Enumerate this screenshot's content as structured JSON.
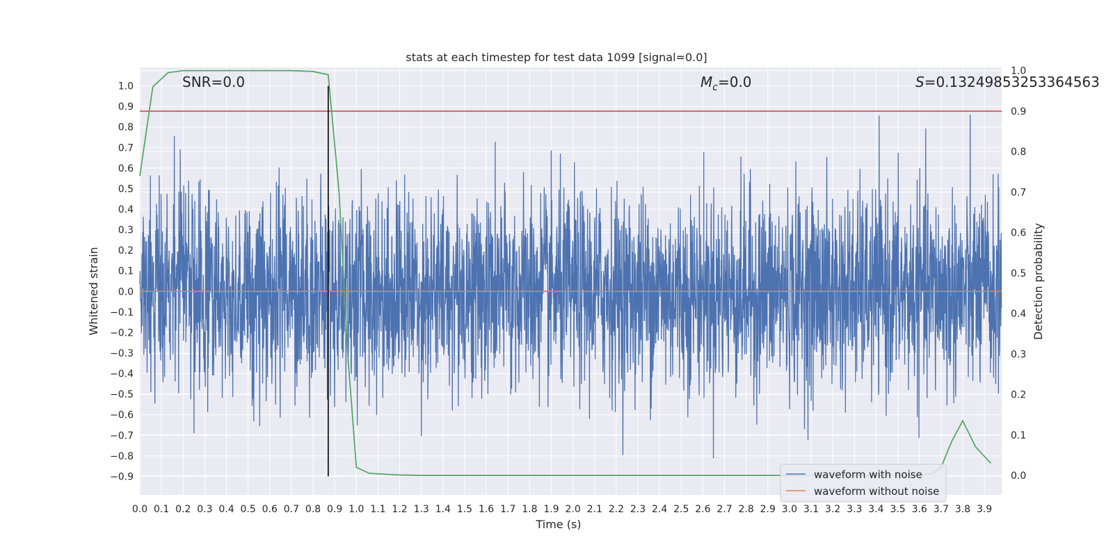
{
  "chart_data": {
    "type": "line",
    "title": "stats at each timestep for test data 1099 [signal=0.0]",
    "xlabel": "Time (s)",
    "ylabel": "Whitened strain",
    "y2label": "Detection probability",
    "xlim": [
      0.0,
      3.98
    ],
    "ylim": [
      -0.99,
      1.09
    ],
    "y2lim": [
      -0.048,
      1.008
    ],
    "xticks": [
      0.0,
      0.1,
      0.2,
      0.3,
      0.4,
      0.5,
      0.6,
      0.7,
      0.8,
      0.9,
      1.0,
      1.1,
      1.2,
      1.3,
      1.4,
      1.5,
      1.6,
      1.7,
      1.8,
      1.9,
      2.0,
      2.1,
      2.2,
      2.3,
      2.4,
      2.5,
      2.6,
      2.7,
      2.8,
      2.9,
      3.0,
      3.1,
      3.2,
      3.3,
      3.4,
      3.5,
      3.6,
      3.7,
      3.8,
      3.9
    ],
    "xtick_labels": [
      "0.0",
      "0.1",
      "0.2",
      "0.3",
      "0.4",
      "0.5",
      "0.6",
      "0.7",
      "0.8",
      "0.9",
      "1.0",
      "1.1",
      "1.2",
      "1.3",
      "1.4",
      "1.5",
      "1.6",
      "1.7",
      "1.8",
      "1.9",
      "2.0",
      "2.1",
      "2.2",
      "2.3",
      "2.4",
      "2.5",
      "2.6",
      "2.7",
      "2.8",
      "2.9",
      "3.0",
      "3.1",
      "3.2",
      "3.3",
      "3.4",
      "3.5",
      "3.6",
      "3.7",
      "3.8",
      "3.9"
    ],
    "yticks": [
      1.0,
      0.9,
      0.8,
      0.7,
      0.6,
      0.5,
      0.4,
      0.3,
      0.2,
      0.1,
      0.0,
      -0.1,
      -0.2,
      -0.3,
      -0.4,
      -0.5,
      -0.6,
      -0.7,
      -0.8,
      -0.9
    ],
    "ytick_labels": [
      "1.0",
      "0.9",
      "0.8",
      "0.7",
      "0.6",
      "0.5",
      "0.4",
      "0.3",
      "0.2",
      "0.1",
      "0.0",
      "−0.1",
      "−0.2",
      "−0.3",
      "−0.4",
      "−0.5",
      "−0.6",
      "−0.7",
      "−0.8",
      "−0.9"
    ],
    "y2ticks": [
      1.0,
      0.9,
      0.8,
      0.7,
      0.6,
      0.5,
      0.4,
      0.3,
      0.2,
      0.1,
      0.0
    ],
    "y2tick_labels": [
      "1.0",
      "0.9",
      "0.8",
      "0.7",
      "0.6",
      "0.5",
      "0.4",
      "0.3",
      "0.2",
      "0.1",
      "0.0"
    ],
    "annotations": {
      "snr": "SNR=0.0",
      "mc_symbol": "M",
      "mc_sub": "c",
      "mc_value": "=0.0",
      "s_symbol": "S",
      "s_value": "=0.13249853253364563"
    },
    "series": [
      {
        "name": "waveform with noise",
        "color": "#4c72b0",
        "note": "noise, amplitude approx within [-0.9, 1.0]"
      },
      {
        "name": "waveform without noise",
        "color": "#dd8452",
        "values_constant": 0.0
      },
      {
        "name": "detection probability",
        "color": "#55a868",
        "axis": "right",
        "x": [
          0.0,
          0.06,
          0.13,
          0.2,
          0.3,
          0.4,
          0.5,
          0.6,
          0.7,
          0.8,
          0.87,
          0.92,
          0.96,
          1.0,
          1.06,
          1.13,
          1.2,
          1.3,
          1.5,
          2.0,
          2.5,
          3.0,
          3.3,
          3.5,
          3.6,
          3.66,
          3.7,
          3.75,
          3.8,
          3.86,
          3.93
        ],
        "y": [
          0.74,
          0.96,
          0.995,
          1.0,
          1.0,
          1.0,
          1.0,
          1.0,
          1.0,
          0.998,
          0.99,
          0.7,
          0.3,
          0.02,
          0.005,
          0.003,
          0.001,
          0.0,
          0.0,
          0.0,
          0.0,
          0.0,
          0.0,
          0.0,
          0.0,
          0.005,
          0.02,
          0.085,
          0.135,
          0.07,
          0.03
        ]
      },
      {
        "name": "threshold",
        "color": "#c44e52",
        "axis": "right",
        "values_constant": 0.9
      }
    ],
    "vline_x": 0.87,
    "legend": {
      "position": "bottom-right",
      "entries": [
        "waveform with noise",
        "waveform without noise"
      ]
    },
    "colors": {
      "background": "#eaeaf2",
      "grid": "#ffffff"
    }
  }
}
